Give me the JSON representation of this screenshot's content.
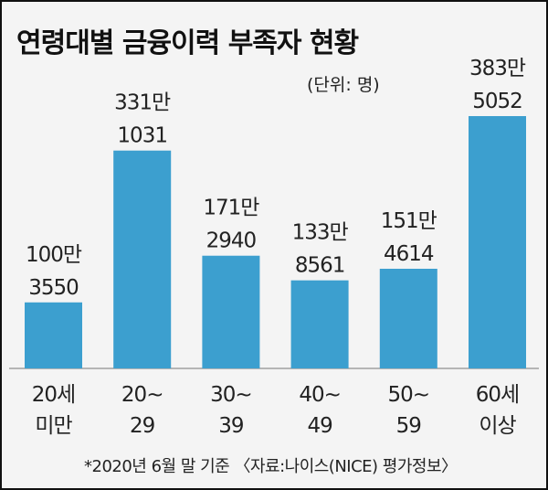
{
  "title": "연령대별 금융이력 부족자 현황",
  "unit_note": "(단위: 명)",
  "footnote": "*2020년 6월 말 기준 〈자료:나이스(NICE) 평가정보〉",
  "colors": {
    "bar": "#3c9fcf",
    "background": "#f4f4f4",
    "baseline": "#b5b5b5"
  },
  "chart_data": {
    "type": "bar",
    "categories": [
      [
        "20세",
        "미만"
      ],
      [
        "20~",
        "29"
      ],
      [
        "30~",
        "39"
      ],
      [
        "40~",
        "49"
      ],
      [
        "50~",
        "59"
      ],
      [
        "60세",
        "이상"
      ]
    ],
    "values": [
      1003550,
      3311031,
      1712940,
      1338561,
      1514614,
      3835052
    ],
    "data_labels": [
      [
        "100만",
        "3550"
      ],
      [
        "331만",
        "1031"
      ],
      [
        "171만",
        "2940"
      ],
      [
        "133만",
        "8561"
      ],
      [
        "151만",
        "4614"
      ],
      [
        "383만",
        "5052"
      ]
    ],
    "ylim": [
      0,
      3835052
    ],
    "grid": false,
    "legend": "none"
  }
}
